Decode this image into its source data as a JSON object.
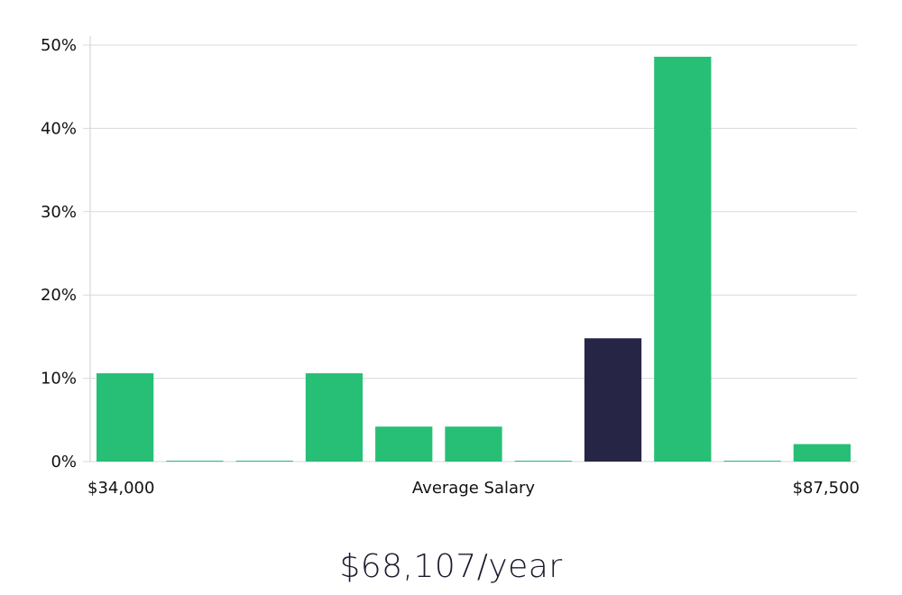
{
  "chart_data": {
    "type": "bar",
    "title": "",
    "xlabel": "Average Salary",
    "ylabel": "",
    "x_start_label": "$34,000",
    "x_end_label": "$87,500",
    "ylim": [
      0,
      50
    ],
    "yticks": [
      0,
      10,
      20,
      30,
      40,
      50
    ],
    "ytick_labels": [
      "0%",
      "10%",
      "20%",
      "30%",
      "40%",
      "50%"
    ],
    "values": [
      10.6,
      0.1,
      0.1,
      10.6,
      4.2,
      4.2,
      0.1,
      14.8,
      48.6,
      0.1,
      2.1
    ],
    "highlight_index": 7,
    "colors": {
      "bar": "#27bf76",
      "highlight": "#272546"
    },
    "grid": true
  },
  "salary": {
    "value_text": "$68,107/year"
  }
}
